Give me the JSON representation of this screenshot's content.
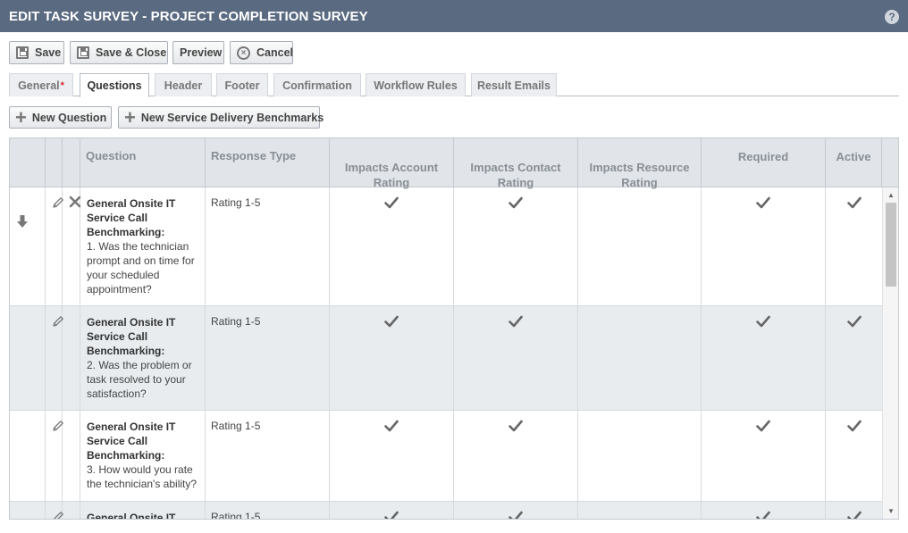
{
  "window": {
    "title": "EDIT TASK SURVEY - PROJECT COMPLETION SURVEY",
    "help_glyph": "?"
  },
  "toolbar": {
    "save_label": "Save",
    "save_close_label": "Save & Close",
    "preview_label": "Preview",
    "cancel_label": "Cancel"
  },
  "tabs": [
    {
      "label": "General",
      "required_mark": "*",
      "active": false
    },
    {
      "label": "Questions",
      "active": true
    },
    {
      "label": "Header",
      "active": false
    },
    {
      "label": "Footer",
      "active": false
    },
    {
      "label": "Confirmation",
      "active": false
    },
    {
      "label": "Workflow Rules",
      "active": false
    },
    {
      "label": "Result Emails",
      "active": false
    }
  ],
  "actions": {
    "new_question_label": "New Question",
    "new_benchmarks_label": "New Service Delivery Benchmarks"
  },
  "grid": {
    "columns": {
      "question": "Question",
      "response_type": "Response Type",
      "impacts_account_line1": "Impacts Account",
      "impacts_account_line2": "Rating",
      "impacts_contact_line1": "Impacts Contact",
      "impacts_contact_line2": "Rating",
      "impacts_resource_line1": "Impacts Resource",
      "impacts_resource_line2": "Rating",
      "required": "Required",
      "active": "Active"
    },
    "rows": [
      {
        "group": "General Onsite IT Service Call Benchmarking:",
        "question": "1. Was the technician prompt and on time for your scheduled appointment?",
        "response_type": "Rating 1-5",
        "impacts_account": true,
        "impacts_contact": true,
        "impacts_resource": false,
        "required": true,
        "active": true,
        "deletable": true,
        "movable": true
      },
      {
        "group": "General Onsite IT Service Call Benchmarking:",
        "question": "2. Was the problem or task resolved to your satisfaction?",
        "response_type": "Rating 1-5",
        "impacts_account": true,
        "impacts_contact": true,
        "impacts_resource": false,
        "required": true,
        "active": true,
        "deletable": false,
        "movable": false
      },
      {
        "group": "General Onsite IT Service Call Benchmarking:",
        "question": "3. How would you rate the technician's ability?",
        "response_type": "Rating 1-5",
        "impacts_account": true,
        "impacts_contact": true,
        "impacts_resource": false,
        "required": true,
        "active": true,
        "deletable": false,
        "movable": false
      },
      {
        "group": "General Onsite IT",
        "question": "",
        "response_type": "Rating 1-5",
        "impacts_account": true,
        "impacts_contact": true,
        "impacts_resource": false,
        "required": true,
        "active": true,
        "deletable": false,
        "movable": false
      }
    ]
  }
}
